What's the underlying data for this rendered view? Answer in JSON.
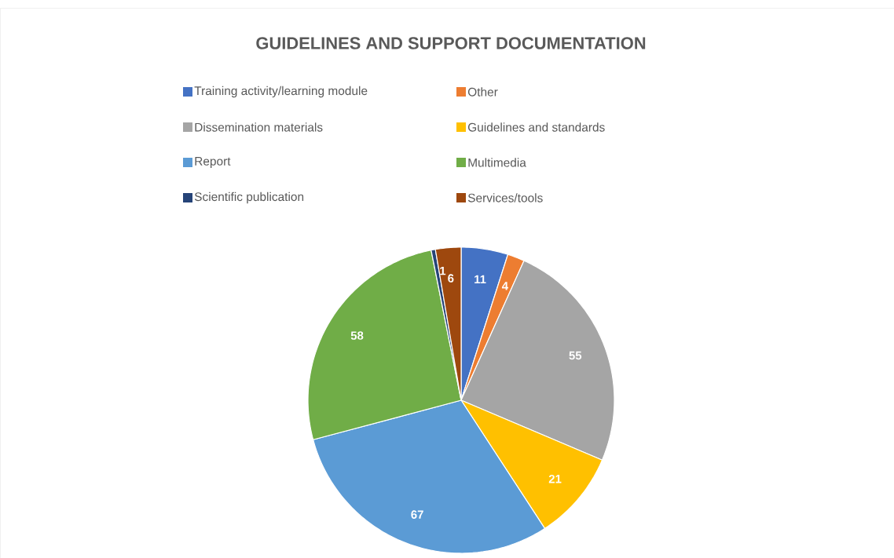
{
  "chart_data": {
    "type": "pie",
    "title": "GUIDELINES AND SUPPORT DOCUMENTATION",
    "categories": [
      "Training activity/learning module",
      "Other",
      "Dissemination materials",
      "Guidelines and standards",
      "Report",
      "Multimedia",
      "Scientific publication",
      "Services/tools"
    ],
    "values": [
      11,
      4,
      55,
      21,
      67,
      58,
      1,
      6
    ],
    "colors": [
      "#4472c4",
      "#ed7d31",
      "#a5a5a5",
      "#ffc000",
      "#5b9bd5",
      "#70ad47",
      "#264478",
      "#9e480e"
    ],
    "data_labels": true,
    "legend": "top"
  }
}
